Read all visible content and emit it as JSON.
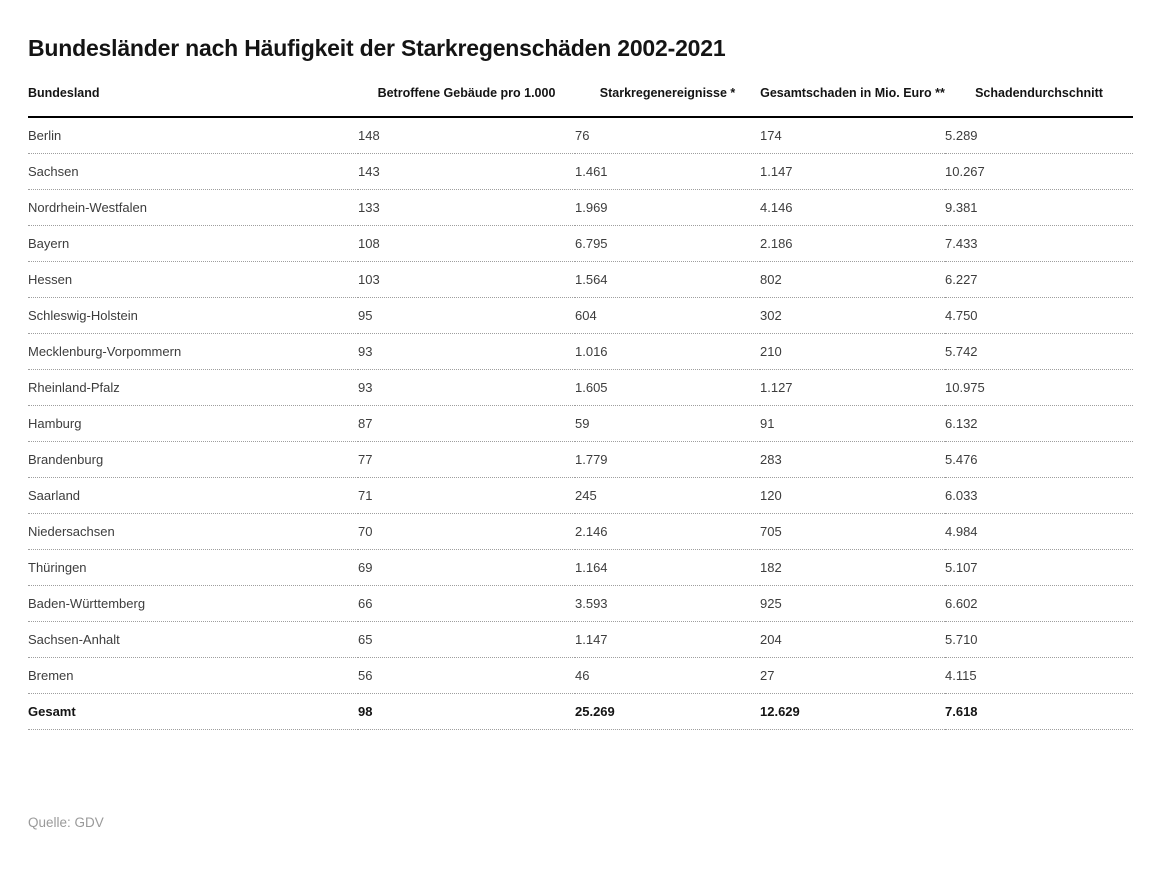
{
  "chart_data": {
    "type": "table",
    "title": "Bundesländer nach Häufigkeit der Starkregenschäden 2002-2021",
    "columns": [
      {
        "label": "Bundesland",
        "align": "left"
      },
      {
        "label": "Betroffene Gebäude pro 1.000",
        "align": "right"
      },
      {
        "label": "Starkregenereignisse *",
        "align": "right"
      },
      {
        "label": "Gesamtschaden in Mio. Euro **",
        "align": "right"
      },
      {
        "label": "Schadendurchschnitt",
        "align": "right"
      }
    ],
    "rows": [
      [
        "Berlin",
        "148",
        "76",
        "174",
        "5.289"
      ],
      [
        "Sachsen",
        "143",
        "1.461",
        "1.147",
        "10.267"
      ],
      [
        "Nordrhein-Westfalen",
        "133",
        "1.969",
        "4.146",
        "9.381"
      ],
      [
        "Bayern",
        "108",
        "6.795",
        "2.186",
        "7.433"
      ],
      [
        "Hessen",
        "103",
        "1.564",
        "802",
        "6.227"
      ],
      [
        "Schleswig-Holstein",
        "95",
        "604",
        "302",
        "4.750"
      ],
      [
        "Mecklenburg-Vorpommern",
        "93",
        "1.016",
        "210",
        "5.742"
      ],
      [
        "Rheinland-Pfalz",
        "93",
        "1.605",
        "1.127",
        "10.975"
      ],
      [
        "Hamburg",
        "87",
        "59",
        "91",
        "6.132"
      ],
      [
        "Brandenburg",
        "77",
        "1.779",
        "283",
        "5.476"
      ],
      [
        "Saarland",
        "71",
        "245",
        "120",
        "6.033"
      ],
      [
        "Niedersachsen",
        "70",
        "2.146",
        "705",
        "4.984"
      ],
      [
        "Thüringen",
        "69",
        "1.164",
        "182",
        "5.107"
      ],
      [
        "Baden-Württemberg",
        "66",
        "3.593",
        "925",
        "6.602"
      ],
      [
        "Sachsen-Anhalt",
        "65",
        "1.147",
        "204",
        "5.710"
      ],
      [
        "Bremen",
        "56",
        "46",
        "27",
        "4.115"
      ]
    ],
    "total_row": [
      "Gesamt",
      "98",
      "25.269",
      "12.629",
      "7.618"
    ]
  },
  "source": "Quelle: GDV",
  "colors": {
    "text_primary": "#3d3d3d",
    "text_heading": "#141414",
    "divider_solid": "#000000",
    "divider_dotted": "#9e9e9e",
    "source_text": "#9a9a9a",
    "background": "#ffffff"
  }
}
